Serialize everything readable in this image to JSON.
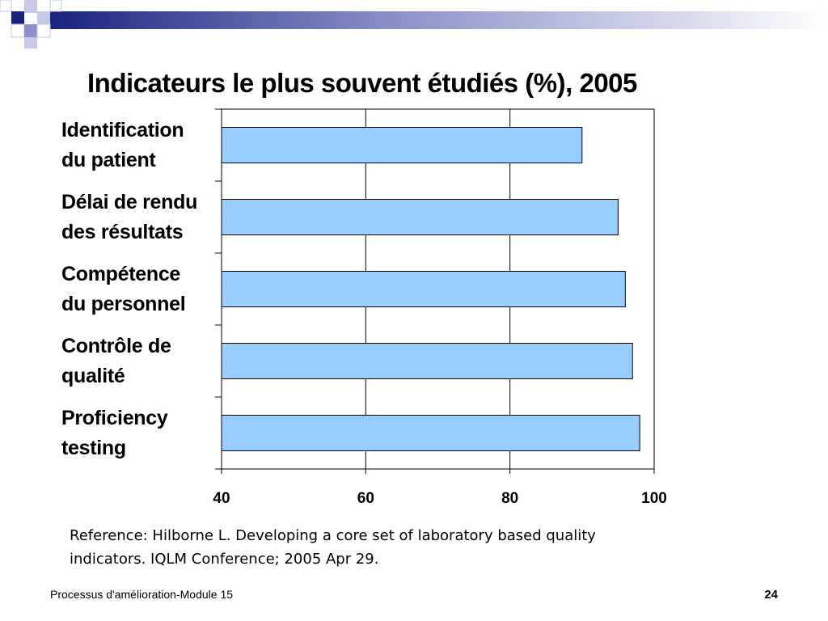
{
  "slide": {
    "footer": "Processus d'amélioration-Module 15",
    "page_number": "24",
    "reference_lines": [
      "Reference: Hilborne L. Developing a core set of laboratory based quality",
      "indicators. IQLM Conference; 2005 Apr 29."
    ]
  },
  "chart_data": {
    "type": "bar",
    "orientation": "horizontal",
    "title": "Indicateurs le plus souvent étudiés (%), 2005",
    "categories": [
      [
        "Identification",
        "du patient"
      ],
      [
        "Délai de rendu",
        "des résultats"
      ],
      [
        "Compétence",
        "du personnel"
      ],
      [
        "Contrôle de",
        "qualité"
      ],
      [
        "Proficiency",
        "testing"
      ]
    ],
    "values": [
      90,
      95,
      96,
      97,
      98
    ],
    "xlim": [
      40,
      100
    ],
    "x_ticks": [
      "40",
      "60",
      "80",
      "100"
    ],
    "grid": true,
    "legend": "none",
    "colors": {
      "bar_fill": "#99ccff",
      "bar_stroke": "#000000",
      "grid": "#000000"
    }
  }
}
